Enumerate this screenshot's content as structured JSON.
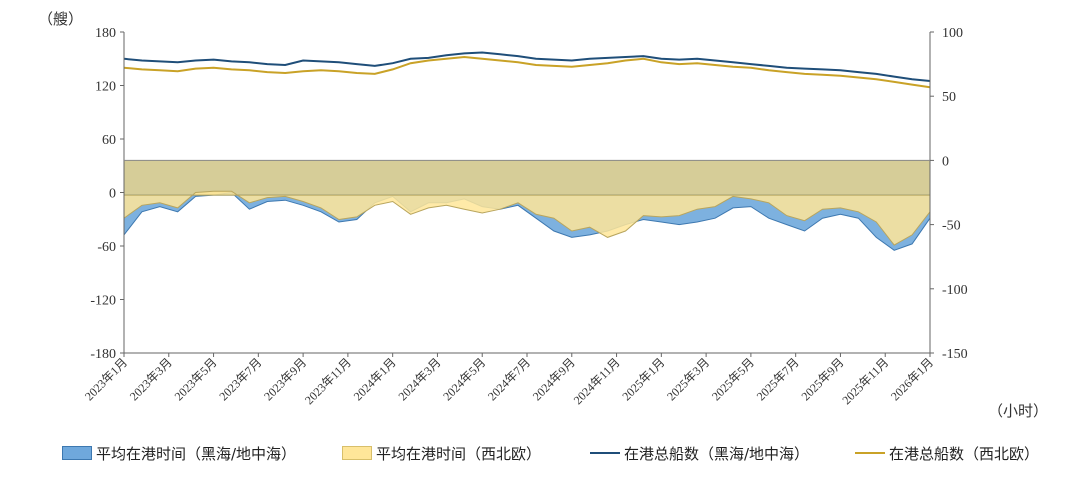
{
  "chart_data": {
    "type": "area",
    "left_axis": {
      "unit": "（艘）",
      "ticks": [
        "180",
        "120",
        "60",
        "0",
        "-60",
        "-120",
        "-180"
      ],
      "range": [
        -180,
        180
      ]
    },
    "right_axis": {
      "unit": "（小时）",
      "ticks": [
        "100",
        "50",
        "0",
        "-50",
        "-100",
        "-150"
      ],
      "range": [
        -150,
        100
      ]
    },
    "x_ticks": [
      "2023年1月",
      "2023年3月",
      "2023年5月",
      "2023年7月",
      "2023年9月",
      "2023年11月",
      "2024年1月",
      "2024年3月",
      "2024年5月",
      "2024年7月",
      "2024年9月",
      "2024年11月",
      "2025年1月",
      "2025年3月",
      "2025年5月",
      "2025年7月",
      "2025年9月",
      "2025年11月",
      "2026年1月"
    ],
    "series": [
      {
        "name": "平均在港时间（黑海/地中海）",
        "kind": "area",
        "axis": "right",
        "color": "#6fa8dc",
        "values": [
          -58,
          -40,
          -36,
          -40,
          -28,
          -27,
          -25,
          -38,
          -32,
          -31,
          -35,
          -40,
          -48,
          -46,
          -33,
          -28,
          -40,
          -33,
          -33,
          -30,
          -36,
          -38,
          -35,
          -45,
          -55,
          -60,
          -58,
          -55,
          -50,
          -46,
          -48,
          -50,
          -48,
          -45,
          -37,
          -36,
          -45,
          -50,
          -55,
          -45,
          -42,
          -45,
          -60,
          -70,
          -65,
          -45
        ]
      },
      {
        "name": "平均在港时间（西北欧）",
        "kind": "area",
        "axis": "right",
        "color": "#ffe699",
        "values": [
          -45,
          -35,
          -33,
          -37,
          -25,
          -24,
          -24,
          -33,
          -29,
          -28,
          -32,
          -37,
          -46,
          -44,
          -35,
          -32,
          -42,
          -37,
          -35,
          -38,
          -41,
          -38,
          -33,
          -42,
          -45,
          -55,
          -52,
          -60,
          -55,
          -43,
          -44,
          -43,
          -38,
          -36,
          -28,
          -30,
          -33,
          -43,
          -47,
          -38,
          -37,
          -40,
          -48,
          -66,
          -58,
          -40
        ]
      },
      {
        "name": "在港总船数（黑海/地中海）",
        "kind": "line",
        "axis": "left",
        "color": "#1f4e79",
        "values": [
          150,
          148,
          147,
          146,
          148,
          149,
          147,
          146,
          144,
          143,
          148,
          147,
          146,
          144,
          142,
          145,
          150,
          151,
          154,
          156,
          157,
          155,
          153,
          150,
          149,
          148,
          150,
          151,
          152,
          153,
          150,
          149,
          150,
          148,
          146,
          144,
          142,
          140,
          139,
          138,
          137,
          135,
          133,
          130,
          127,
          125
        ]
      },
      {
        "name": "在港总船数（西北欧）",
        "kind": "line",
        "axis": "left",
        "color": "#c9a227",
        "values": [
          140,
          138,
          137,
          136,
          139,
          140,
          138,
          137,
          135,
          134,
          136,
          137,
          136,
          134,
          133,
          138,
          145,
          148,
          150,
          152,
          150,
          148,
          146,
          143,
          142,
          141,
          143,
          145,
          148,
          150,
          146,
          144,
          145,
          143,
          141,
          140,
          137,
          135,
          133,
          132,
          131,
          129,
          127,
          124,
          121,
          118
        ]
      }
    ]
  }
}
